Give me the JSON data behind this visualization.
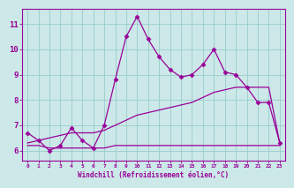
{
  "xlabel": "Windchill (Refroidissement éolien,°C)",
  "bg_color": "#cce8e8",
  "grid_color": "#99cccc",
  "line_color": "#990099",
  "xlim": [
    -0.5,
    23.5
  ],
  "ylim": [
    5.6,
    11.6
  ],
  "xticks": [
    0,
    1,
    2,
    3,
    4,
    5,
    6,
    7,
    8,
    9,
    10,
    11,
    12,
    13,
    14,
    15,
    16,
    17,
    18,
    19,
    20,
    21,
    22,
    23
  ],
  "yticks": [
    6,
    7,
    8,
    9,
    10,
    11
  ],
  "main_x": [
    0,
    1,
    2,
    3,
    4,
    5,
    6,
    7,
    8,
    9,
    10,
    11,
    12,
    13,
    14,
    15,
    16,
    17,
    18,
    19,
    20,
    21,
    22,
    23
  ],
  "main_y": [
    6.7,
    6.4,
    6.0,
    6.2,
    6.9,
    6.4,
    6.1,
    7.0,
    8.8,
    10.5,
    11.3,
    10.4,
    9.7,
    9.2,
    8.9,
    9.0,
    9.4,
    10.0,
    9.1,
    9.0,
    8.5,
    7.9,
    7.9,
    6.3
  ],
  "line2_x": [
    0,
    1,
    2,
    3,
    4,
    5,
    6,
    7,
    8,
    9,
    10,
    11,
    12,
    13,
    14,
    15,
    16,
    17,
    18,
    19,
    20,
    21,
    22,
    23
  ],
  "line2_y": [
    6.2,
    6.2,
    6.1,
    6.1,
    6.1,
    6.1,
    6.1,
    6.1,
    6.2,
    6.2,
    6.2,
    6.2,
    6.2,
    6.2,
    6.2,
    6.2,
    6.2,
    6.2,
    6.2,
    6.2,
    6.2,
    6.2,
    6.2,
    6.2
  ],
  "line3_x": [
    0,
    1,
    2,
    3,
    4,
    5,
    6,
    7,
    8,
    9,
    10,
    11,
    12,
    13,
    14,
    15,
    16,
    17,
    18,
    19,
    20,
    21,
    22,
    23
  ],
  "line3_y": [
    6.3,
    6.4,
    6.5,
    6.6,
    6.7,
    6.7,
    6.7,
    6.8,
    7.0,
    7.2,
    7.4,
    7.5,
    7.6,
    7.7,
    7.8,
    7.9,
    8.1,
    8.3,
    8.4,
    8.5,
    8.5,
    8.5,
    8.5,
    6.3
  ]
}
